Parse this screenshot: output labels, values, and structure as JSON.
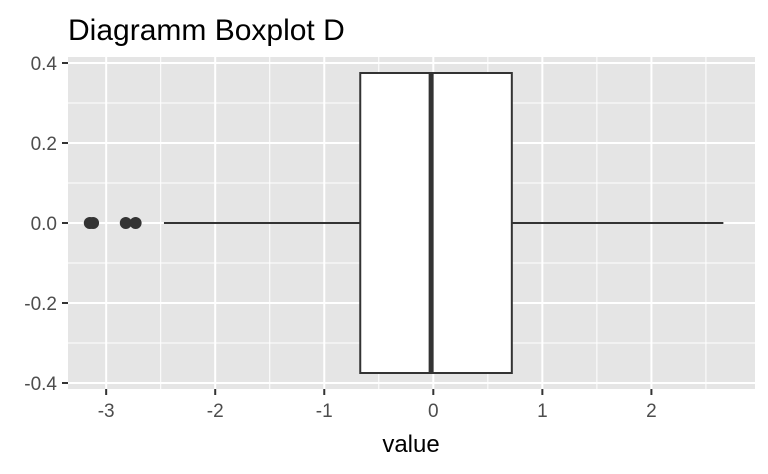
{
  "chart_data": {
    "type": "boxplot",
    "title": "Diagramm Boxplot D",
    "xlabel": "value",
    "ylabel": "",
    "xlim": [
      -3.35,
      2.95
    ],
    "ylim": [
      -0.415,
      0.415
    ],
    "x_ticks": [
      -3,
      -2,
      -1,
      0,
      1,
      2
    ],
    "x_tick_labels": [
      "-3",
      "-2",
      "-1",
      "0",
      "1",
      "2"
    ],
    "y_ticks": [
      0.4,
      0.2,
      0.0,
      -0.2,
      -0.4
    ],
    "y_tick_labels": [
      "0.4",
      "0.2",
      "0.0",
      "-0.2",
      "-0.4"
    ],
    "grid": true,
    "box": {
      "y_center": 0.0,
      "y_range": [
        -0.375,
        0.375
      ],
      "q1": -0.67,
      "median": -0.02,
      "q3": 0.72,
      "whisker_low": -2.47,
      "whisker_high": 2.66,
      "outliers": [
        -3.15,
        -3.12,
        -2.82,
        -2.73
      ]
    },
    "colors": {
      "panel": "#e5e5e5",
      "grid": "#ffffff",
      "box_fill": "#ffffff",
      "stroke": "#333333",
      "tick_text": "#4d4d4d"
    }
  }
}
